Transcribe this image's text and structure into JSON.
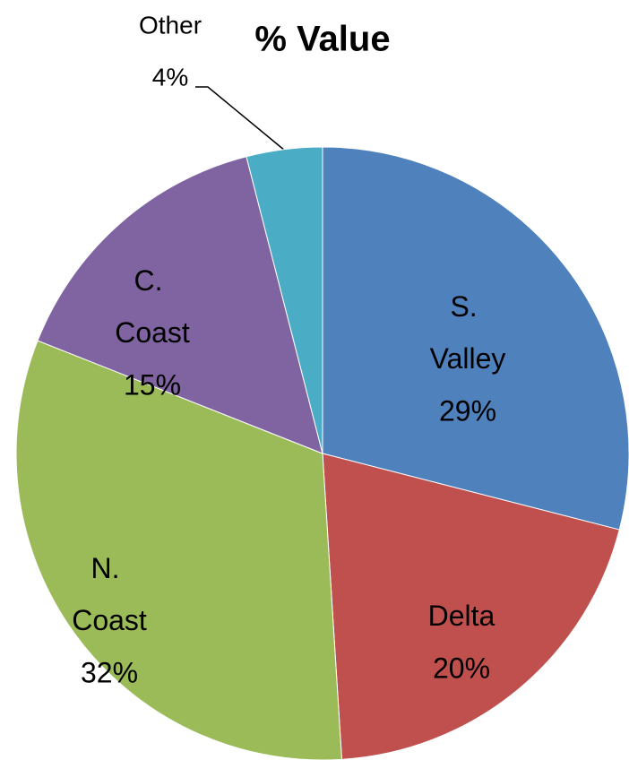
{
  "chart_data": {
    "type": "pie",
    "title": "% Value",
    "categories": [
      "S. Valley",
      "Delta",
      "N. Coast",
      "C. Coast",
      "Other"
    ],
    "values": [
      29,
      20,
      32,
      15,
      4
    ],
    "value_labels": [
      "29%",
      "20%",
      "32%",
      "15%",
      "4%"
    ],
    "colors": [
      "#4f81bd",
      "#c0504d",
      "#9bbb59",
      "#8064a2",
      "#4bacc6"
    ]
  }
}
